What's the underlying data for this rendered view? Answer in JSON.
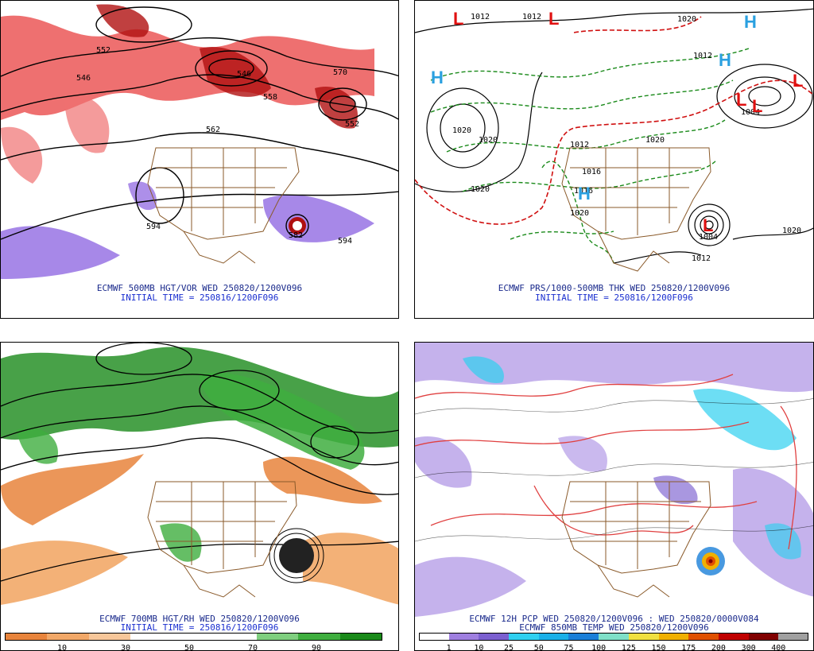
{
  "panels": {
    "p1": {
      "caption1": "ECMWF 500MB HGT/VOR WED 250820/1200V096",
      "caption2": "INITIAL TIME = 250816/1200F096",
      "contour_labels": [
        "552",
        "546",
        "558",
        "570",
        "552",
        "546",
        "562",
        "594",
        "582",
        "594"
      ]
    },
    "p2": {
      "caption1": "ECMWF PRS/1000-500MB THK WED 250820/1200V096",
      "caption2": "INITIAL TIME = 250816/1200F096",
      "contour_labels": [
        "1012",
        "1012",
        "1020",
        "1020",
        "1012",
        "1020",
        "1016",
        "1020",
        "1004",
        "1020",
        "1012",
        "1016",
        "1020",
        "1020",
        "1012",
        "1004"
      ]
    },
    "p3": {
      "caption1": "ECMWF 700MB HGT/RH WED 250820/1200V096",
      "caption2": "INITIAL TIME = 250816/1200F096",
      "colorbar": {
        "ticks": [
          "10",
          "30",
          "50",
          "70",
          "90"
        ],
        "colors": [
          "#e8843c",
          "#f2a868",
          "#f7c79a",
          "#ffffff",
          "#ffffff",
          "#ffffff",
          "#7fcf7f",
          "#3fae3f",
          "#1a8a1a"
        ]
      }
    },
    "p4": {
      "caption1": "ECMWF 12H PCP WED 250820/1200V096 : WED 250820/0000V084",
      "caption2": "ECMWF 850MB TEMP WED 250820/1200V096",
      "colorbar": {
        "ticks": [
          "1",
          "10",
          "25",
          "50",
          "75",
          "100",
          "125",
          "150",
          "175",
          "200",
          "300",
          "400"
        ],
        "colors": [
          "#ffffff",
          "#9f7fe0",
          "#7b5fd0",
          "#2fd0f0",
          "#1ab0e8",
          "#1a7fd8",
          "#7fe0c8",
          "#f0e040",
          "#f0b000",
          "#e05000",
          "#c00000",
          "#800000",
          "#a0a0a0"
        ]
      }
    }
  },
  "colors": {
    "vorticity": "#d8202a",
    "vorticity_light": "#f07070",
    "neg_vorticity": "#8a60e0",
    "low_marker": "#e01010",
    "high_marker": "#2aa0e0",
    "thickness_dash": "#1a8a1a",
    "thickness_warm": "#d01010",
    "rh_dry": "#e8843c",
    "rh_moist": "#1a8a1a",
    "border": "#8a5a2a"
  },
  "symbols": [
    "L",
    "L",
    "L",
    "L",
    "L",
    "L",
    "H",
    "H",
    "H",
    "H"
  ]
}
